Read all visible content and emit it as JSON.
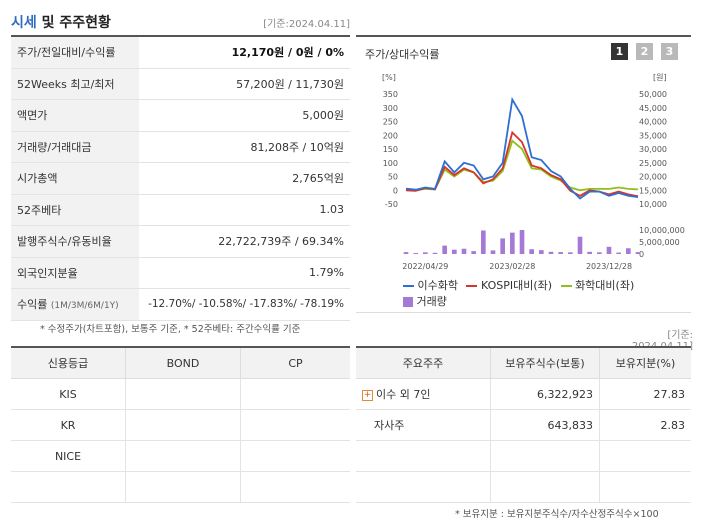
{
  "header": {
    "title_accent": "시세",
    "title_rest": " 및 주주현황",
    "date": "[기준:2024.04.11]"
  },
  "summary": [
    {
      "label": "주가/전일대비/수익률",
      "value": "12,170원 / 0원 / 0%"
    },
    {
      "label": "52Weeks 최고/최저",
      "value": "57,200원 / 11,730원"
    },
    {
      "label": "액면가",
      "value": "5,000원"
    },
    {
      "label": "거래량/거래대금",
      "value": "81,208주 / 10억원"
    },
    {
      "label": "시가총액",
      "value": "2,765억원"
    },
    {
      "label": "52주베타",
      "value": "1.03"
    },
    {
      "label": "발행주식수/유동비율",
      "value": "22,722,739주 / 69.34%"
    },
    {
      "label": "외국인지분율",
      "value": "1.79%"
    }
  ],
  "returns": {
    "label": "수익률",
    "periods": "(1M/3M/6M/1Y)",
    "value": "-12.70%/ -10.58%/ -17.83%/ -78.19%"
  },
  "footnote_left": "* 수정주가(차트포함), 보통주 기준, * 52주베타: 주간수익률 기준",
  "chart": {
    "title": "주가/상대수익률",
    "tabs": [
      "1",
      "2",
      "3"
    ],
    "colors": {
      "stock": "#2f6fd1",
      "kospi": "#d9342b",
      "chem": "#8fbf1a",
      "volume": "#a47ad6"
    }
  },
  "chart_data": {
    "type": "line",
    "ylabel_left": "[%]",
    "ylabel_right": "[원]",
    "y_left_ticks": [
      "350",
      "300",
      "250",
      "200",
      "150",
      "100",
      "50",
      "0",
      "-50"
    ],
    "y_right_ticks": [
      "50,000",
      "45,000",
      "40,000",
      "35,000",
      "30,000",
      "25,000",
      "20,000",
      "15,000",
      "10,000"
    ],
    "vol_ticks": [
      "10,000,000",
      "5,000,000",
      "0"
    ],
    "x_ticks": [
      "2022/04/29",
      "2023/02/28",
      "2023/12/28"
    ],
    "ylim": [
      -50,
      350
    ],
    "vol_max": 10000000,
    "x": [
      "2022-04",
      "2022-05",
      "2022-06",
      "2022-07",
      "2022-08",
      "2022-09",
      "2022-10",
      "2022-11",
      "2022-12",
      "2023-01",
      "2023-02",
      "2023-03",
      "2023-04",
      "2023-05",
      "2023-06",
      "2023-07",
      "2023-08",
      "2023-09",
      "2023-10",
      "2023-11",
      "2023-12",
      "2024-01",
      "2024-02",
      "2024-03",
      "2024-04"
    ],
    "series": [
      {
        "name": "이수화학",
        "values": [
          6,
          2,
          10,
          5,
          105,
          65,
          100,
          90,
          40,
          50,
          100,
          330,
          270,
          120,
          110,
          70,
          50,
          5,
          -30,
          -5,
          -5,
          -20,
          -10,
          -20,
          -25
        ]
      },
      {
        "name": "KOSPI대비(좌)",
        "values": [
          0,
          -2,
          8,
          3,
          85,
          55,
          80,
          65,
          25,
          40,
          80,
          210,
          175,
          90,
          80,
          55,
          40,
          -2,
          -20,
          0,
          -5,
          -15,
          -5,
          -15,
          -22
        ]
      },
      {
        "name": "화학대비(좌)",
        "values": [
          2,
          0,
          5,
          3,
          75,
          50,
          75,
          65,
          30,
          35,
          70,
          180,
          150,
          80,
          75,
          50,
          35,
          10,
          0,
          5,
          5,
          5,
          10,
          5,
          3
        ]
      }
    ],
    "volume_name": "거래량",
    "volume": [
      800000,
      400000,
      700000,
      500000,
      3500000,
      1800000,
      2200000,
      1200000,
      9800000,
      1500000,
      6500000,
      8900000,
      10000000,
      2000000,
      1600000,
      900000,
      800000,
      700000,
      7200000,
      900000,
      700000,
      3000000,
      600000,
      2400000,
      800000
    ]
  },
  "footnote_date": "[기준: 2024.04.11]",
  "credit": {
    "headers": [
      "신용등급",
      "BOND",
      "CP"
    ],
    "rows": [
      [
        "KIS",
        "",
        ""
      ],
      [
        "KR",
        "",
        ""
      ],
      [
        "NICE",
        "",
        ""
      ],
      [
        "",
        "",
        ""
      ]
    ]
  },
  "holders": {
    "headers": [
      "주요주주",
      "보유주식수(보통)",
      "보유지분(%)"
    ],
    "rows": [
      {
        "name": "이수 외 7인",
        "shares": "6,322,923",
        "pct": "27.83",
        "expand": "+"
      },
      {
        "name": "자사주",
        "shares": "643,833",
        "pct": "2.83"
      }
    ]
  },
  "footnote_right": "* 보유지분 : 보유지분주식수/자수산정주식수×100"
}
